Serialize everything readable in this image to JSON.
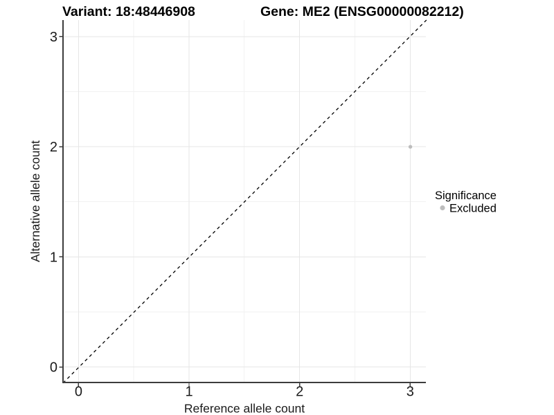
{
  "titles": {
    "variant": "Variant: 18:48446908",
    "gene": "Gene: ME2 (ENSG00000082212)"
  },
  "legend": {
    "title": "Significance"
  },
  "chart_data": {
    "type": "scatter",
    "title_left": "Variant: 18:48446908",
    "title_right": "Gene: ME2 (ENSG00000082212)",
    "xlabel": "Reference allele count",
    "ylabel": "Alternative allele count",
    "xlim": [
      -0.14,
      3.14
    ],
    "ylim": [
      -0.14,
      3.15
    ],
    "x_ticks": [
      0,
      1,
      2,
      3
    ],
    "y_ticks": [
      0,
      1,
      2,
      3
    ],
    "grid": "major and minor gridlines, light gray on white",
    "legend_position": "right",
    "point_radius_px": 2.7,
    "series": [
      {
        "name": "Excluded",
        "color": "#bdbdbd",
        "points": [
          {
            "x": 3,
            "y": 2
          }
        ]
      }
    ],
    "reference_line": {
      "equation": "y = x",
      "style": "dashed",
      "color": "#000000"
    }
  },
  "colors": {
    "background": "#ffffff",
    "grid_major": "#e6e6e6",
    "grid_minor": "#f2f2f2",
    "axis_line": "#3c3c3c",
    "text": "#000000"
  }
}
